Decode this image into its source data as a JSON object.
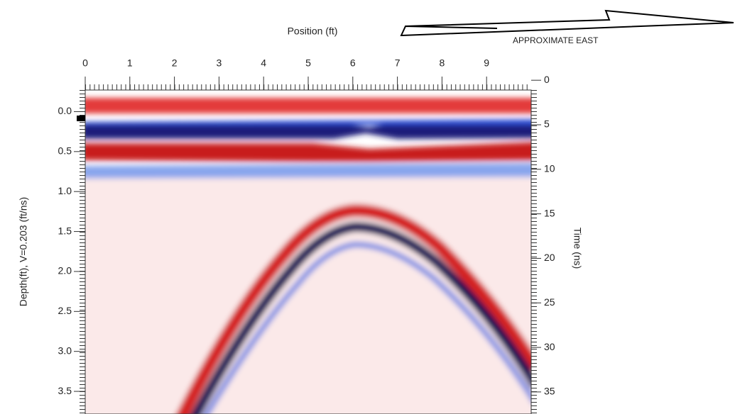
{
  "chart_data": {
    "type": "radargram",
    "title": "Position (ft)",
    "annotation": "APPROXIMATE EAST",
    "y_label": "Depth(ft), V=0.203 (ft/ns)",
    "y2_label": "Time (ns)",
    "xlim": [
      0,
      10
    ],
    "xticks": [
      0,
      1,
      2,
      3,
      4,
      5,
      6,
      7,
      8,
      9
    ],
    "ylim": [
      -0.27,
      3.73
    ],
    "y_inverted": true,
    "yticks": [
      {
        "value": 0,
        "label": "0.0"
      },
      0.5,
      {
        "value": 1,
        "label": "1.0"
      },
      1.5,
      {
        "value": 2,
        "label": "2.0"
      },
      2.5,
      {
        "value": 3,
        "label": "3.0"
      },
      3.5
    ],
    "y2lim": [
      1.1,
      37
    ],
    "y2ticks": [
      0,
      5,
      10,
      15,
      20,
      25,
      30,
      35
    ]
  }
}
